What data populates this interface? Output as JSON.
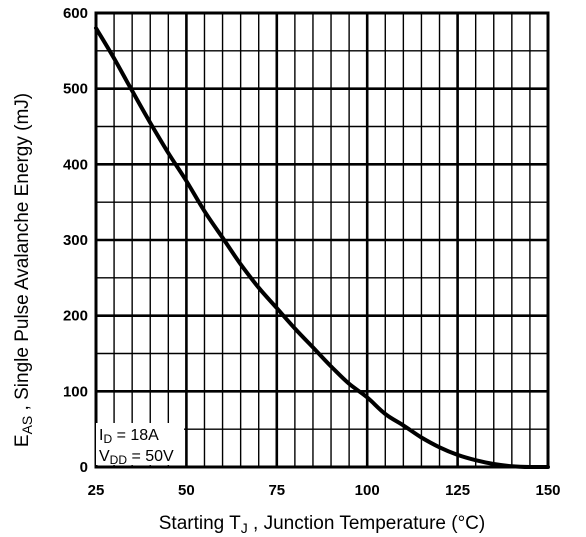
{
  "chart_data": {
    "type": "line",
    "xlabel": "Starting T",
    "xlabel_sub": "J",
    "xlabel_rest": " , Junction Temperature (°C)",
    "ylabel_main": "E",
    "ylabel_sub": "AS",
    "ylabel_rest": " ,   Single Pulse Avalanche Energy (mJ)",
    "xlim": [
      25,
      150
    ],
    "ylim": [
      0,
      600
    ],
    "x_ticks": [
      25,
      50,
      75,
      100,
      125,
      150
    ],
    "y_ticks": [
      0,
      100,
      200,
      300,
      400,
      500,
      600
    ],
    "x_tick_labels": [
      "25",
      "50",
      "75",
      "100",
      "125",
      "150"
    ],
    "y_tick_labels": [
      "0",
      "100",
      "200",
      "300",
      "400",
      "500",
      "600"
    ],
    "x_minor_step": 5,
    "y_minor_step": 50,
    "grid": true,
    "series": [
      {
        "x": [
          25,
          30,
          35,
          40,
          45,
          50,
          55,
          60,
          65,
          70,
          75,
          80,
          85,
          90,
          95,
          100,
          105,
          110,
          115,
          120,
          125,
          130,
          135,
          140,
          145,
          150
        ],
        "y": [
          580,
          540,
          497,
          455,
          415,
          378,
          338,
          303,
          268,
          237,
          210,
          183,
          158,
          133,
          110,
          92,
          70,
          55,
          39,
          26,
          16,
          9,
          4,
          1,
          0,
          0
        ]
      }
    ],
    "annotation": {
      "line1_main": "I",
      "line1_sub": "D",
      "line1_rest": " = 18A",
      "line2_main": "V",
      "line2_sub": "DD",
      "line2_rest": " = 50V"
    }
  }
}
